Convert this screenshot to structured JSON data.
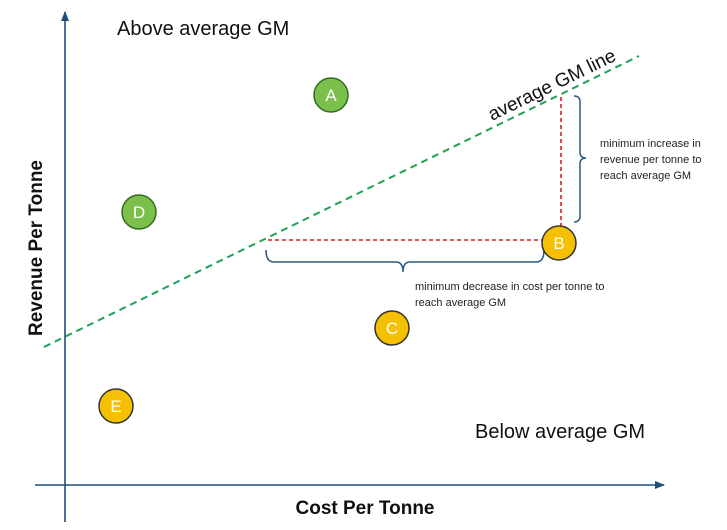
{
  "axes": {
    "x_title": "Cost Per Tonne",
    "y_title": "Revenue Per Tonne"
  },
  "regions": {
    "above": "Above average GM",
    "below": "Below average GM"
  },
  "avg_line_label": "average GM line",
  "annotations": {
    "revenue_note": [
      "minimum increase in",
      "revenue per tonne to",
      "reach average GM"
    ],
    "cost_note": [
      "minimum decrease in cost per tonne to",
      "reach average GM"
    ]
  },
  "points": [
    {
      "label": "A",
      "status": "above"
    },
    {
      "label": "D",
      "status": "above"
    },
    {
      "label": "B",
      "status": "below"
    },
    {
      "label": "C",
      "status": "below"
    },
    {
      "label": "E",
      "status": "below"
    }
  ],
  "colors": {
    "above_fill": "#7cc04b",
    "above_stroke": "#2f6e22",
    "below_fill": "#f5c000",
    "below_stroke": "#333333",
    "axis": "#1f4e79",
    "avg_line": "#1fa055",
    "gap": "#d62020",
    "brace": "#2a5a85"
  }
}
